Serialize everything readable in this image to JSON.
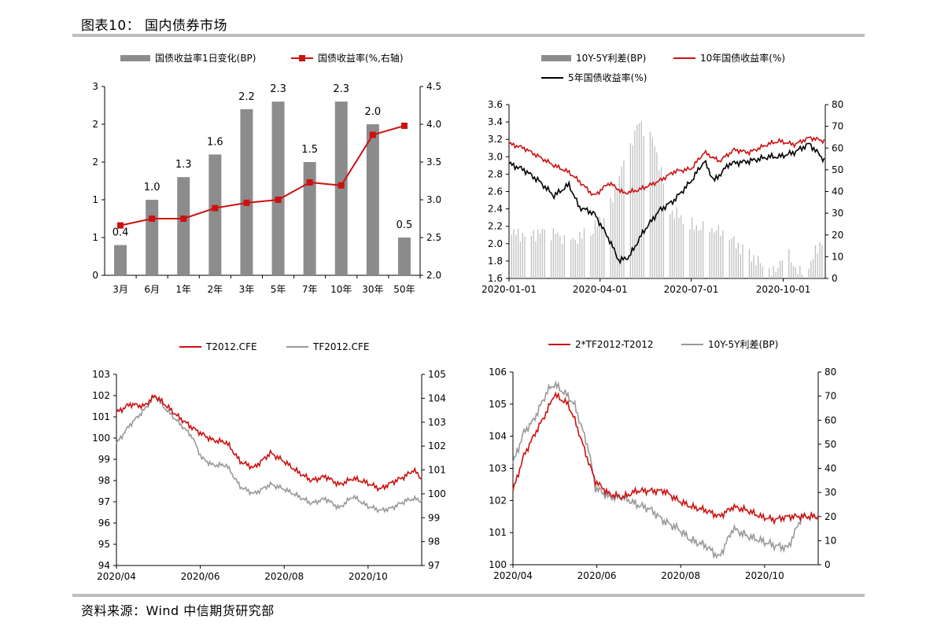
{
  "figure": {
    "title": "图表10： 国内债券市场",
    "source": "资料来源：Wind 中信期货研究部"
  },
  "colors": {
    "gray_bar": "#8c8c8c",
    "red": "#cc1111",
    "black": "#000000",
    "light_gray": "#bfbfbf",
    "mid_gray": "#999999",
    "rule": "#bdbdbd"
  },
  "chart_data": [
    {
      "type": "bar",
      "categories": [
        "3月",
        "6月",
        "1年",
        "2年",
        "3年",
        "5年",
        "7年",
        "10年",
        "30年",
        "50年"
      ],
      "series": [
        {
          "name": "国债收益率1日变化(BP)",
          "type": "bar",
          "axis": "left",
          "values": [
            0.4,
            1.0,
            1.3,
            1.6,
            2.2,
            2.3,
            1.5,
            2.3,
            2.0,
            0.5
          ],
          "labels": [
            "0.4",
            "1.0",
            "1.3",
            "1.6",
            "2.2",
            "2.3",
            "1.5",
            "2.3",
            "2.0",
            "0.5"
          ]
        },
        {
          "name": "国债收益率(%,右轴)",
          "type": "line",
          "axis": "right",
          "values": [
            2.66,
            2.75,
            2.75,
            2.89,
            2.96,
            3.0,
            3.23,
            3.19,
            3.86,
            3.98
          ]
        }
      ],
      "left_ticks": [
        "3",
        "2",
        "2",
        "1",
        "1",
        "0"
      ],
      "ylim_left": [
        0,
        2.5
      ],
      "right_ticks": [
        "4.5",
        "4.0",
        "3.5",
        "3.0",
        "2.5",
        "2.0"
      ],
      "ylim_right": [
        2.0,
        4.5
      ]
    },
    {
      "type": "line",
      "x_ticks": [
        "2020-01-01",
        "2020-04-01",
        "2020-07-01",
        "2020-10-01"
      ],
      "x_tick_days": [
        0,
        91,
        182,
        274
      ],
      "x_range_days": [
        0,
        316
      ],
      "left_ticks": [
        "3.6",
        "3.4",
        "3.2",
        "3.0",
        "2.8",
        "2.6",
        "2.4",
        "2.2",
        "2.0",
        "1.8",
        "1.6"
      ],
      "ylim_left": [
        1.6,
        3.6
      ],
      "right_ticks": [
        "80",
        "70",
        "60",
        "50",
        "40",
        "30",
        "20",
        "10",
        "0"
      ],
      "ylim_right": [
        0,
        80
      ],
      "series": [
        {
          "name": "10Y-5Y利差(BP)",
          "type": "bar",
          "axis": "right",
          "points": [
            [
              0,
              20
            ],
            [
              20,
              21
            ],
            [
              40,
              21
            ],
            [
              60,
              18
            ],
            [
              80,
              20
            ],
            [
              100,
              32
            ],
            [
              115,
              55
            ],
            [
              130,
              72
            ],
            [
              145,
              62
            ],
            [
              160,
              32
            ],
            [
              180,
              24
            ],
            [
              200,
              24
            ],
            [
              220,
              18
            ],
            [
              240,
              12
            ],
            [
              255,
              4
            ],
            [
              265,
              2
            ],
            [
              275,
              14
            ],
            [
              290,
              2
            ],
            [
              300,
              6
            ],
            [
              316,
              22
            ]
          ]
        },
        {
          "name": "10年国债收益率(%)",
          "type": "line",
          "axis": "left",
          "points": [
            [
              0,
              3.15
            ],
            [
              15,
              3.1
            ],
            [
              30,
              3.0
            ],
            [
              45,
              2.9
            ],
            [
              60,
              2.82
            ],
            [
              70,
              2.72
            ],
            [
              85,
              2.55
            ],
            [
              100,
              2.7
            ],
            [
              115,
              2.58
            ],
            [
              130,
              2.62
            ],
            [
              150,
              2.72
            ],
            [
              165,
              2.83
            ],
            [
              182,
              2.86
            ],
            [
              195,
              3.05
            ],
            [
              210,
              2.95
            ],
            [
              225,
              3.08
            ],
            [
              240,
              3.05
            ],
            [
              260,
              3.15
            ],
            [
              270,
              3.18
            ],
            [
              285,
              3.14
            ],
            [
              300,
              3.22
            ],
            [
              316,
              3.18
            ]
          ]
        },
        {
          "name": "5年国债收益率(%)",
          "type": "line",
          "axis": "left",
          "points": [
            [
              0,
              2.92
            ],
            [
              15,
              2.85
            ],
            [
              30,
              2.72
            ],
            [
              45,
              2.55
            ],
            [
              60,
              2.68
            ],
            [
              70,
              2.42
            ],
            [
              85,
              2.35
            ],
            [
              100,
              2.05
            ],
            [
              110,
              1.8
            ],
            [
              120,
              1.85
            ],
            [
              135,
              2.15
            ],
            [
              150,
              2.38
            ],
            [
              165,
              2.5
            ],
            [
              182,
              2.72
            ],
            [
              195,
              2.95
            ],
            [
              205,
              2.72
            ],
            [
              220,
              2.92
            ],
            [
              240,
              2.95
            ],
            [
              260,
              3.0
            ],
            [
              270,
              3.0
            ],
            [
              285,
              3.05
            ],
            [
              300,
              3.15
            ],
            [
              316,
              2.95
            ]
          ]
        }
      ]
    },
    {
      "type": "line",
      "x_ticks": [
        "2020/04",
        "2020/06",
        "2020/08",
        "2020/10"
      ],
      "x_tick_days": [
        0,
        61,
        122,
        183
      ],
      "x_range_days": [
        0,
        222
      ],
      "left_ticks": [
        "103",
        "102",
        "101",
        "100",
        "99",
        "98",
        "97",
        "96",
        "95",
        "94"
      ],
      "ylim_left": [
        94,
        103
      ],
      "right_ticks": [
        "105",
        "104",
        "103",
        "102",
        "101",
        "100",
        "99",
        "98",
        "97"
      ],
      "ylim_right": [
        97,
        105
      ],
      "series": [
        {
          "name": "T2012.CFE",
          "type": "line",
          "axis": "left",
          "points": [
            [
              0,
              101.2
            ],
            [
              10,
              101.6
            ],
            [
              20,
              101.5
            ],
            [
              28,
              102.0
            ],
            [
              35,
              101.6
            ],
            [
              45,
              101.0
            ],
            [
              55,
              100.5
            ],
            [
              62,
              100.2
            ],
            [
              70,
              99.9
            ],
            [
              80,
              99.8
            ],
            [
              90,
              98.9
            ],
            [
              100,
              98.6
            ],
            [
              112,
              99.3
            ],
            [
              122,
              98.9
            ],
            [
              132,
              98.4
            ],
            [
              142,
              98.0
            ],
            [
              152,
              98.2
            ],
            [
              162,
              97.8
            ],
            [
              172,
              98.1
            ],
            [
              182,
              97.9
            ],
            [
              192,
              97.6
            ],
            [
              200,
              97.9
            ],
            [
              210,
              98.2
            ],
            [
              216,
              98.5
            ],
            [
              222,
              98.1
            ]
          ]
        },
        {
          "name": "TF2012.CFE",
          "type": "line",
          "axis": "right",
          "points": [
            [
              0,
              102.1
            ],
            [
              10,
              102.9
            ],
            [
              20,
              103.5
            ],
            [
              28,
              104.1
            ],
            [
              35,
              103.6
            ],
            [
              45,
              103.0
            ],
            [
              55,
              102.4
            ],
            [
              62,
              101.5
            ],
            [
              70,
              101.2
            ],
            [
              80,
              101.2
            ],
            [
              90,
              100.3
            ],
            [
              100,
              100.0
            ],
            [
              112,
              100.4
            ],
            [
              122,
              100.2
            ],
            [
              132,
              99.9
            ],
            [
              142,
              99.6
            ],
            [
              152,
              99.8
            ],
            [
              162,
              99.4
            ],
            [
              172,
              99.9
            ],
            [
              182,
              99.5
            ],
            [
              192,
              99.3
            ],
            [
              200,
              99.4
            ],
            [
              210,
              99.7
            ],
            [
              216,
              99.8
            ],
            [
              222,
              99.7
            ]
          ]
        }
      ]
    },
    {
      "type": "line",
      "x_ticks": [
        "2020/04",
        "2020/06",
        "2020/08",
        "2020/10"
      ],
      "x_tick_days": [
        0,
        61,
        122,
        183
      ],
      "x_range_days": [
        0,
        222
      ],
      "left_ticks": [
        "106",
        "105",
        "104",
        "103",
        "102",
        "101",
        "100"
      ],
      "ylim_left": [
        100,
        106
      ],
      "right_ticks": [
        "80",
        "70",
        "60",
        "50",
        "40",
        "30",
        "20",
        "10",
        "0"
      ],
      "ylim_right": [
        0,
        80
      ],
      "series": [
        {
          "name": "2*TF2012-T2012",
          "type": "line",
          "axis": "left",
          "points": [
            [
              0,
              102.3
            ],
            [
              8,
              103.4
            ],
            [
              15,
              104.0
            ],
            [
              25,
              104.8
            ],
            [
              30,
              105.3
            ],
            [
              40,
              105.0
            ],
            [
              45,
              104.5
            ],
            [
              55,
              103.2
            ],
            [
              60,
              102.6
            ],
            [
              70,
              102.2
            ],
            [
              80,
              102.1
            ],
            [
              90,
              102.3
            ],
            [
              100,
              102.3
            ],
            [
              110,
              102.3
            ],
            [
              120,
              102.0
            ],
            [
              130,
              101.8
            ],
            [
              140,
              101.7
            ],
            [
              150,
              101.5
            ],
            [
              160,
              101.8
            ],
            [
              170,
              101.7
            ],
            [
              180,
              101.5
            ],
            [
              190,
              101.4
            ],
            [
              200,
              101.5
            ],
            [
              210,
              101.5
            ],
            [
              222,
              101.5
            ]
          ]
        },
        {
          "name": "10Y-5Y利差(BP)",
          "type": "line",
          "axis": "right",
          "points": [
            [
              0,
              42
            ],
            [
              8,
              55
            ],
            [
              15,
              60
            ],
            [
              25,
              72
            ],
            [
              30,
              75
            ],
            [
              40,
              70
            ],
            [
              45,
              66
            ],
            [
              55,
              48
            ],
            [
              60,
              32
            ],
            [
              70,
              28
            ],
            [
              80,
              28
            ],
            [
              90,
              25
            ],
            [
              100,
              23
            ],
            [
              110,
              18
            ],
            [
              120,
              15
            ],
            [
              130,
              10
            ],
            [
              140,
              8
            ],
            [
              150,
              3
            ],
            [
              160,
              15
            ],
            [
              170,
              12
            ],
            [
              180,
              10
            ],
            [
              190,
              8
            ],
            [
              200,
              7
            ],
            [
              210,
              20
            ],
            [
              222,
              20
            ]
          ]
        }
      ]
    }
  ]
}
